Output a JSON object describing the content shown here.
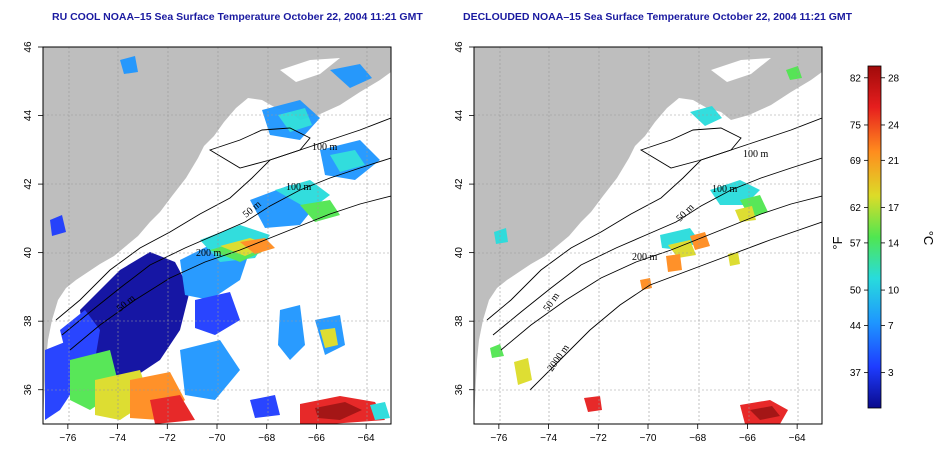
{
  "panels": [
    {
      "title": "RU COOL NOAA–15 Sea Surface Temperature October 22, 2004 11:21 GMT",
      "contour_labels": [
        "100 m",
        "100 m",
        "50 m",
        "200 m",
        "50 m"
      ]
    },
    {
      "title": "DECLOUDED NOAA–15 Sea Surface Temperature October 22, 2004 11:21 GMT",
      "contour_labels": [
        "100 m",
        "100 m",
        "50 m",
        "200 m",
        "50 m",
        "2000 m"
      ]
    }
  ],
  "axes": {
    "x_ticks": [
      "−76",
      "−74",
      "−72",
      "−70",
      "−68",
      "−66",
      "−64"
    ],
    "y_ticks": [
      "46",
      "44",
      "42",
      "40",
      "38",
      "36"
    ],
    "x_values": [
      -76,
      -74,
      -72,
      -70,
      -68,
      -66,
      -64
    ],
    "y_values": [
      46,
      44,
      42,
      40,
      38,
      36
    ],
    "xlim": [
      -77,
      -63
    ],
    "ylim": [
      35,
      46
    ]
  },
  "colorbar": {
    "fahrenheit_label": "°F",
    "celsius_label": "°C",
    "fahrenheit_ticks": [
      "82",
      "75",
      "69",
      "62",
      "57",
      "50",
      "44",
      "37"
    ],
    "celsius_ticks": [
      "28",
      "24",
      "21",
      "17",
      "14",
      "10",
      "7",
      "3"
    ],
    "celsius_values": [
      28,
      24,
      21,
      17,
      14,
      10,
      7,
      3
    ],
    "range_celsius": [
      0,
      29
    ],
    "colors": [
      "#0a0a8c",
      "#1e3cff",
      "#1e96ff",
      "#28dcdc",
      "#50e650",
      "#dcdc28",
      "#ff8c1e",
      "#e61e1e",
      "#a00a0a"
    ]
  }
}
